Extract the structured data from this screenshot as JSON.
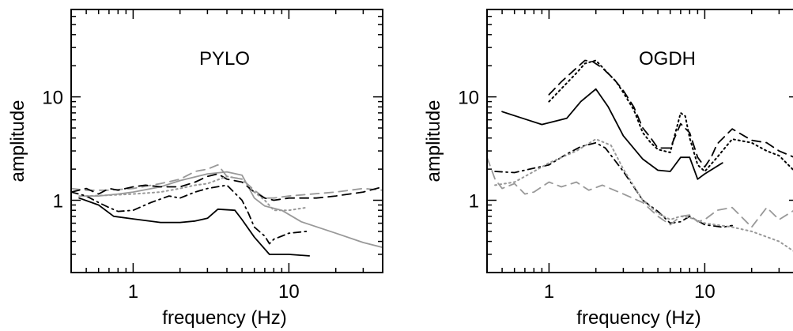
{
  "chart_data": [
    {
      "type": "line",
      "title": "PYLO",
      "xlabel": "frequency (Hz)",
      "ylabel": "amplitude",
      "xscale": "log",
      "yscale": "log",
      "xlim": [
        0.4,
        40
      ],
      "ylim": [
        0.2,
        70
      ],
      "xticks": [
        {
          "value": 1,
          "label": "1"
        },
        {
          "value": 10,
          "label": "10"
        }
      ],
      "yticks": [
        {
          "value": 1,
          "label": "1"
        },
        {
          "value": 10,
          "label": "10"
        }
      ],
      "grid": false,
      "series": [
        {
          "style": "solid",
          "color": "#000000",
          "x": [
            0.45,
            0.6,
            0.75,
            1.0,
            1.5,
            2.0,
            2.5,
            3.0,
            3.5,
            4.5,
            5.0,
            6.0,
            7.5,
            10.0,
            13.5
          ],
          "y": [
            1.05,
            0.9,
            0.7,
            0.66,
            0.61,
            0.61,
            0.63,
            0.67,
            0.82,
            0.8,
            0.65,
            0.44,
            0.3,
            0.3,
            0.29
          ]
        },
        {
          "style": "solid",
          "color": "#999999",
          "x": [
            0.45,
            0.6,
            0.8,
            1.0,
            1.5,
            2.0,
            3.0,
            4.0,
            5.0,
            6.0,
            7.0,
            9.0,
            12.0,
            20.0,
            30.0,
            40.0
          ],
          "y": [
            1.1,
            1.1,
            1.15,
            1.2,
            1.35,
            1.55,
            1.8,
            1.88,
            1.75,
            1.05,
            0.88,
            0.8,
            0.62,
            0.48,
            0.39,
            0.35
          ]
        },
        {
          "style": "dashed",
          "color": "#999999",
          "x": [
            0.4,
            0.5,
            0.7,
            1.0,
            1.5,
            2.0,
            2.5,
            3.0,
            3.5,
            4.0,
            5.0,
            6.0,
            7.0,
            8.0,
            10.0,
            20.0,
            30.0,
            40.0
          ],
          "y": [
            1.3,
            1.25,
            1.25,
            1.3,
            1.45,
            1.6,
            1.9,
            2.0,
            2.2,
            1.7,
            1.6,
            1.25,
            1.05,
            1.05,
            1.1,
            1.2,
            1.3,
            1.25
          ]
        },
        {
          "style": "dashed",
          "color": "#000000",
          "x": [
            0.4,
            0.5,
            0.6,
            0.7,
            0.8,
            1.0,
            1.2,
            1.5,
            2.0,
            2.5,
            3.0,
            3.5,
            4.0,
            5.0,
            6.0,
            7.0,
            8.0,
            10.0,
            15.0,
            20.0,
            30.0,
            40.0
          ],
          "y": [
            1.2,
            1.3,
            1.15,
            1.3,
            1.25,
            1.35,
            1.4,
            1.35,
            1.35,
            1.5,
            1.7,
            1.8,
            1.6,
            1.5,
            1.2,
            1.05,
            1.0,
            1.05,
            1.05,
            1.1,
            1.2,
            1.35
          ]
        },
        {
          "style": "dashdot",
          "color": "#000000",
          "x": [
            0.4,
            0.5,
            0.6,
            0.7,
            0.8,
            1.0,
            1.3,
            1.7,
            2.0,
            2.5,
            3.0,
            4.0,
            5.0,
            5.5,
            6.0,
            7.0,
            7.5,
            8.0,
            9.0,
            10.0,
            13.0
          ],
          "y": [
            1.2,
            1.1,
            0.95,
            0.85,
            0.78,
            0.8,
            0.95,
            1.1,
            1.05,
            1.2,
            1.3,
            1.4,
            1.0,
            0.75,
            0.55,
            0.45,
            0.38,
            0.42,
            0.45,
            0.48,
            0.5
          ]
        },
        {
          "style": "dotted",
          "color": "#999999",
          "x": [
            0.5,
            0.7,
            1.0,
            1.5,
            2.0,
            2.5,
            3.0,
            4.0,
            5.0,
            6.0,
            7.0,
            8.0,
            10.0,
            13.0
          ],
          "y": [
            1.1,
            1.12,
            1.15,
            1.2,
            1.3,
            1.4,
            1.45,
            1.7,
            1.6,
            1.2,
            1.0,
            0.8,
            0.8,
            0.85
          ]
        }
      ]
    },
    {
      "type": "line",
      "title": "OGDH",
      "xlabel": "frequency (Hz)",
      "ylabel": "amplitude",
      "xscale": "log",
      "yscale": "log",
      "xlim": [
        0.4,
        40
      ],
      "ylim": [
        0.2,
        70
      ],
      "xticks": [
        {
          "value": 1,
          "label": "1"
        },
        {
          "value": 10,
          "label": "10"
        }
      ],
      "yticks": [
        {
          "value": 1,
          "label": "1"
        },
        {
          "value": 10,
          "label": "10"
        }
      ],
      "grid": false,
      "series": [
        {
          "style": "solid",
          "color": "#000000",
          "x": [
            0.5,
            0.7,
            0.9,
            1.3,
            1.6,
            2.0,
            2.4,
            3.0,
            4.0,
            5.0,
            6.0,
            7.0,
            8.0,
            9.0,
            10.0,
            13.0
          ],
          "y": [
            7.2,
            6.1,
            5.4,
            6.2,
            9.0,
            11.9,
            8.0,
            4.2,
            2.5,
            1.95,
            1.9,
            2.6,
            2.6,
            1.6,
            1.8,
            2.3
          ]
        },
        {
          "style": "dashed",
          "color": "#000000",
          "x": [
            1.0,
            1.2,
            1.5,
            1.7,
            1.9,
            2.2,
            2.6,
            3.0,
            3.5,
            4.0,
            4.5,
            5.0,
            6.0,
            7.0,
            8.0,
            9.0,
            10.0,
            11.0,
            12.0,
            15.0,
            20.0,
            25.0,
            30.0,
            40.0
          ],
          "y": [
            10.5,
            14.0,
            19.0,
            22.5,
            22.0,
            19.0,
            15.0,
            11.5,
            8.0,
            5.0,
            4.0,
            3.2,
            3.2,
            5.5,
            4.5,
            2.6,
            2.1,
            2.6,
            3.5,
            4.9,
            3.8,
            3.6,
            3.0,
            2.5
          ]
        },
        {
          "style": "dotted",
          "color": "#000000",
          "x": [
            1.0,
            1.2,
            1.5,
            1.7,
            2.0,
            2.3,
            2.7,
            3.0,
            3.5,
            4.0,
            4.5,
            5.0,
            6.0,
            7.0,
            7.5,
            8.0,
            9.0,
            10.0,
            12.0,
            15.0,
            20.0,
            25.0,
            30.0,
            40.0
          ],
          "y": [
            9.0,
            12.0,
            17.0,
            21.0,
            22.5,
            18.0,
            14.0,
            11.0,
            7.5,
            4.5,
            3.6,
            3.1,
            2.9,
            7.0,
            6.5,
            4.0,
            2.2,
            1.9,
            2.6,
            3.9,
            3.6,
            3.0,
            2.7,
            1.75
          ]
        },
        {
          "style": "dashdot",
          "color": "#000000",
          "x": [
            0.45,
            0.6,
            0.75,
            1.0,
            1.3,
            1.6,
            2.0,
            2.3,
            3.0,
            3.5,
            4.0,
            5.0,
            6.0,
            7.0,
            8.0,
            10.0,
            13.0,
            15.0
          ],
          "y": [
            1.9,
            1.85,
            2.0,
            2.2,
            2.8,
            3.3,
            3.6,
            3.2,
            1.9,
            1.35,
            1.0,
            0.78,
            0.6,
            0.62,
            0.7,
            0.58,
            0.55,
            0.57
          ]
        },
        {
          "style": "dotted",
          "color": "#999999",
          "x": [
            0.45,
            0.6,
            0.75,
            1.0,
            1.5,
            2.0,
            2.5,
            3.0,
            4.0,
            5.0,
            6.0,
            7.0,
            8.0,
            10.0,
            15.0,
            20.0,
            30.0,
            40.0
          ],
          "y": [
            1.4,
            1.5,
            1.8,
            2.3,
            3.0,
            3.9,
            3.4,
            2.0,
            1.0,
            0.75,
            0.65,
            0.7,
            0.68,
            0.6,
            0.55,
            0.5,
            0.4,
            0.3
          ]
        },
        {
          "style": "dashed",
          "color": "#999999",
          "x": [
            0.4,
            0.45,
            0.5,
            0.6,
            0.7,
            0.8,
            1.0,
            1.2,
            1.5,
            1.8,
            2.2,
            3.0,
            4.0,
            5.0,
            6.0,
            7.0,
            8.0,
            9.0,
            10.0,
            12.0,
            15.0,
            20.0,
            25.0,
            30.0,
            40.0
          ],
          "y": [
            2.6,
            1.6,
            1.3,
            1.45,
            1.15,
            1.2,
            1.5,
            1.35,
            1.5,
            1.25,
            1.4,
            1.15,
            0.95,
            0.7,
            0.58,
            0.7,
            0.72,
            0.62,
            0.65,
            0.8,
            0.85,
            0.55,
            0.85,
            0.65,
            0.85
          ]
        }
      ]
    }
  ]
}
